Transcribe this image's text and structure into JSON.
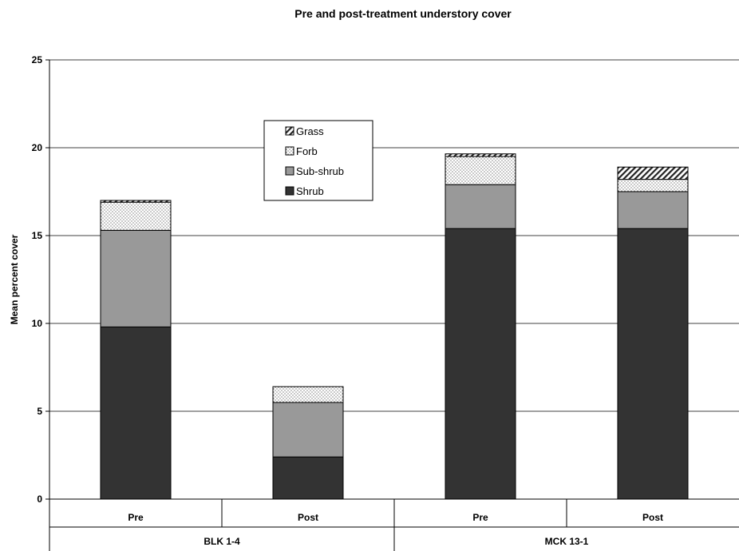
{
  "chart_data": {
    "type": "bar",
    "stacked": true,
    "title": "Pre and post-treatment understory cover",
    "ylabel": "Mean percent cover",
    "xlabel": "",
    "ylim": [
      0,
      25
    ],
    "yticks": [
      0,
      5,
      10,
      15,
      20,
      25
    ],
    "grid": true,
    "legend_position": "top-center",
    "categories": [
      "Pre",
      "Post",
      "Pre",
      "Post"
    ],
    "groups": [
      {
        "label": "BLK 1-4",
        "categories": [
          "Pre",
          "Post"
        ]
      },
      {
        "label": "MCK 13-1",
        "categories": [
          "Pre",
          "Post"
        ]
      }
    ],
    "series": [
      {
        "name": "Shrub",
        "values": [
          9.8,
          2.4,
          15.4,
          15.4
        ],
        "color": "#333333",
        "pattern": "solid"
      },
      {
        "name": "Sub-shrub",
        "values": [
          5.5,
          3.1,
          2.5,
          2.1
        ],
        "color": "#999999",
        "pattern": "solid"
      },
      {
        "name": "Forb",
        "values": [
          1.6,
          0.9,
          1.6,
          0.7
        ],
        "color": "#ffffff",
        "pattern": "dots"
      },
      {
        "name": "Grass",
        "values": [
          0.1,
          0.0,
          0.15,
          0.7
        ],
        "color": "#ffffff",
        "pattern": "diagonal"
      }
    ],
    "legend_order": [
      "Grass",
      "Forb",
      "Sub-shrub",
      "Shrub"
    ]
  }
}
